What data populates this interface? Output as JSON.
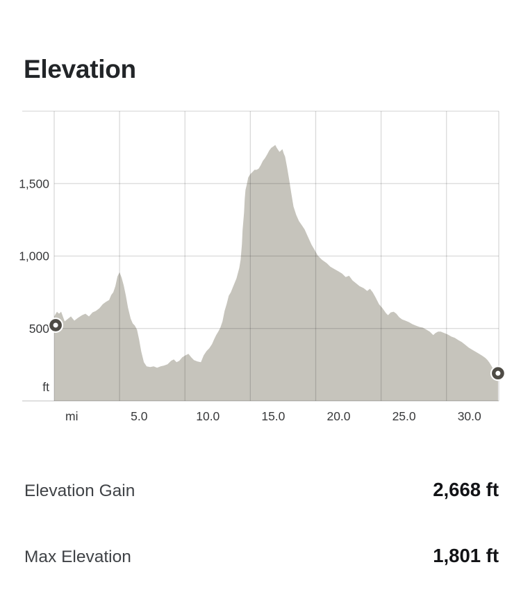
{
  "title": "Elevation",
  "chart_data": {
    "type": "area",
    "title": "Elevation",
    "x_unit_label": "mi",
    "y_unit_label": "ft",
    "xlim": [
      0,
      34
    ],
    "ylim": [
      0,
      2000
    ],
    "grid": true,
    "x_ticks": [
      {
        "mi": 0,
        "label": "mi"
      },
      {
        "mi": 5,
        "label": "5.0"
      },
      {
        "mi": 10,
        "label": "10.0"
      },
      {
        "mi": 15,
        "label": "15.0"
      },
      {
        "mi": 20,
        "label": "20.0"
      },
      {
        "mi": 25,
        "label": "25.0"
      },
      {
        "mi": 30,
        "label": "30.0"
      }
    ],
    "y_ticks": [
      {
        "ft": 500,
        "label": "500"
      },
      {
        "ft": 1000,
        "label": "1,000"
      },
      {
        "ft": 1500,
        "label": "1,500"
      }
    ],
    "area_color": "#c6c4bc",
    "grid_color": "rgba(0,0,0,0.15)",
    "axis_color": "rgba(0,0,0,0.2)",
    "marker_ring_color": "#4e4b45",
    "markers": [
      {
        "name": "start",
        "mi": 0.11,
        "ft": 523
      },
      {
        "name": "end",
        "mi": 33.94,
        "ft": 191
      }
    ],
    "series": [
      {
        "name": "elevation-profile",
        "points_mi_ft": [
          [
            0,
            583
          ],
          [
            0.21,
            616
          ],
          [
            0.37,
            602
          ],
          [
            0.53,
            616
          ],
          [
            0.8,
            549
          ],
          [
            1.06,
            568
          ],
          [
            1.28,
            583
          ],
          [
            1.54,
            554
          ],
          [
            1.81,
            573
          ],
          [
            2.13,
            592
          ],
          [
            2.39,
            602
          ],
          [
            2.66,
            583
          ],
          [
            2.93,
            611
          ],
          [
            3.19,
            621
          ],
          [
            3.46,
            640
          ],
          [
            3.72,
            668
          ],
          [
            3.94,
            683
          ],
          [
            4.2,
            697
          ],
          [
            4.36,
            731
          ],
          [
            4.52,
            750
          ],
          [
            4.68,
            793
          ],
          [
            4.84,
            859
          ],
          [
            5.0,
            888
          ],
          [
            5.16,
            850
          ],
          [
            5.32,
            797
          ],
          [
            5.48,
            726
          ],
          [
            5.64,
            645
          ],
          [
            5.85,
            568
          ],
          [
            6.01,
            535
          ],
          [
            6.17,
            520
          ],
          [
            6.33,
            492
          ],
          [
            6.49,
            425
          ],
          [
            6.65,
            344
          ],
          [
            6.86,
            267
          ],
          [
            7.07,
            239
          ],
          [
            7.34,
            234
          ],
          [
            7.61,
            239
          ],
          [
            7.87,
            229
          ],
          [
            8.14,
            239
          ],
          [
            8.4,
            244
          ],
          [
            8.67,
            253
          ],
          [
            8.94,
            277
          ],
          [
            9.15,
            287
          ],
          [
            9.36,
            267
          ],
          [
            9.57,
            277
          ],
          [
            9.79,
            301
          ],
          [
            10.05,
            315
          ],
          [
            10.27,
            325
          ],
          [
            10.48,
            301
          ],
          [
            10.69,
            282
          ],
          [
            10.96,
            272
          ],
          [
            11.22,
            267
          ],
          [
            11.44,
            315
          ],
          [
            11.65,
            344
          ],
          [
            11.86,
            363
          ],
          [
            12.07,
            392
          ],
          [
            12.23,
            425
          ],
          [
            12.39,
            454
          ],
          [
            12.55,
            478
          ],
          [
            12.71,
            506
          ],
          [
            12.87,
            549
          ],
          [
            13.03,
            621
          ],
          [
            13.19,
            669
          ],
          [
            13.35,
            726
          ],
          [
            13.51,
            750
          ],
          [
            13.72,
            797
          ],
          [
            13.94,
            845
          ],
          [
            14.15,
            917
          ],
          [
            14.26,
            974
          ],
          [
            14.36,
            1084
          ],
          [
            14.41,
            1179
          ],
          [
            14.52,
            1299
          ],
          [
            14.57,
            1394
          ],
          [
            14.63,
            1456
          ],
          [
            14.73,
            1494
          ],
          [
            14.84,
            1542
          ],
          [
            15.0,
            1566
          ],
          [
            15.16,
            1580
          ],
          [
            15.32,
            1595
          ],
          [
            15.48,
            1595
          ],
          [
            15.64,
            1604
          ],
          [
            15.8,
            1628
          ],
          [
            15.96,
            1657
          ],
          [
            16.12,
            1676
          ],
          [
            16.28,
            1700
          ],
          [
            16.44,
            1728
          ],
          [
            16.6,
            1747
          ],
          [
            16.76,
            1757
          ],
          [
            16.91,
            1767
          ],
          [
            17.02,
            1747
          ],
          [
            17.13,
            1733
          ],
          [
            17.23,
            1719
          ],
          [
            17.34,
            1728
          ],
          [
            17.45,
            1738
          ],
          [
            17.55,
            1709
          ],
          [
            17.66,
            1686
          ],
          [
            17.82,
            1609
          ],
          [
            17.98,
            1523
          ],
          [
            18.14,
            1428
          ],
          [
            18.3,
            1342
          ],
          [
            18.51,
            1284
          ],
          [
            18.72,
            1241
          ],
          [
            18.94,
            1213
          ],
          [
            19.15,
            1184
          ],
          [
            19.41,
            1132
          ],
          [
            19.68,
            1079
          ],
          [
            19.89,
            1046
          ],
          [
            20.16,
            1003
          ],
          [
            20.48,
            974
          ],
          [
            20.85,
            950
          ],
          [
            21.12,
            926
          ],
          [
            21.49,
            907
          ],
          [
            21.76,
            893
          ],
          [
            22.02,
            879
          ],
          [
            22.29,
            855
          ],
          [
            22.55,
            864
          ],
          [
            22.82,
            831
          ],
          [
            23.09,
            812
          ],
          [
            23.35,
            793
          ],
          [
            23.67,
            778
          ],
          [
            23.94,
            759
          ],
          [
            24.15,
            774
          ],
          [
            24.36,
            750
          ],
          [
            24.57,
            716
          ],
          [
            24.84,
            668
          ],
          [
            25.11,
            640
          ],
          [
            25.37,
            606
          ],
          [
            25.53,
            592
          ],
          [
            25.74,
            611
          ],
          [
            25.96,
            616
          ],
          [
            26.17,
            602
          ],
          [
            26.38,
            578
          ],
          [
            26.6,
            563
          ],
          [
            26.86,
            554
          ],
          [
            27.13,
            544
          ],
          [
            27.39,
            530
          ],
          [
            27.66,
            520
          ],
          [
            27.93,
            511
          ],
          [
            28.19,
            506
          ],
          [
            28.46,
            492
          ],
          [
            28.72,
            478
          ],
          [
            28.99,
            454
          ],
          [
            29.15,
            468
          ],
          [
            29.36,
            478
          ],
          [
            29.57,
            478
          ],
          [
            29.84,
            468
          ],
          [
            30.11,
            458
          ],
          [
            30.37,
            444
          ],
          [
            30.64,
            435
          ],
          [
            30.9,
            420
          ],
          [
            31.17,
            406
          ],
          [
            31.44,
            387
          ],
          [
            31.7,
            368
          ],
          [
            31.97,
            353
          ],
          [
            32.23,
            339
          ],
          [
            32.5,
            325
          ],
          [
            32.77,
            310
          ],
          [
            32.98,
            296
          ],
          [
            33.14,
            282
          ],
          [
            33.3,
            263
          ],
          [
            33.46,
            239
          ],
          [
            33.62,
            215
          ],
          [
            33.78,
            201
          ],
          [
            33.94,
            191
          ]
        ]
      }
    ]
  },
  "stats": [
    {
      "label": "Elevation Gain",
      "value": "2,668 ft"
    },
    {
      "label": "Max Elevation",
      "value": "1,801 ft"
    }
  ]
}
